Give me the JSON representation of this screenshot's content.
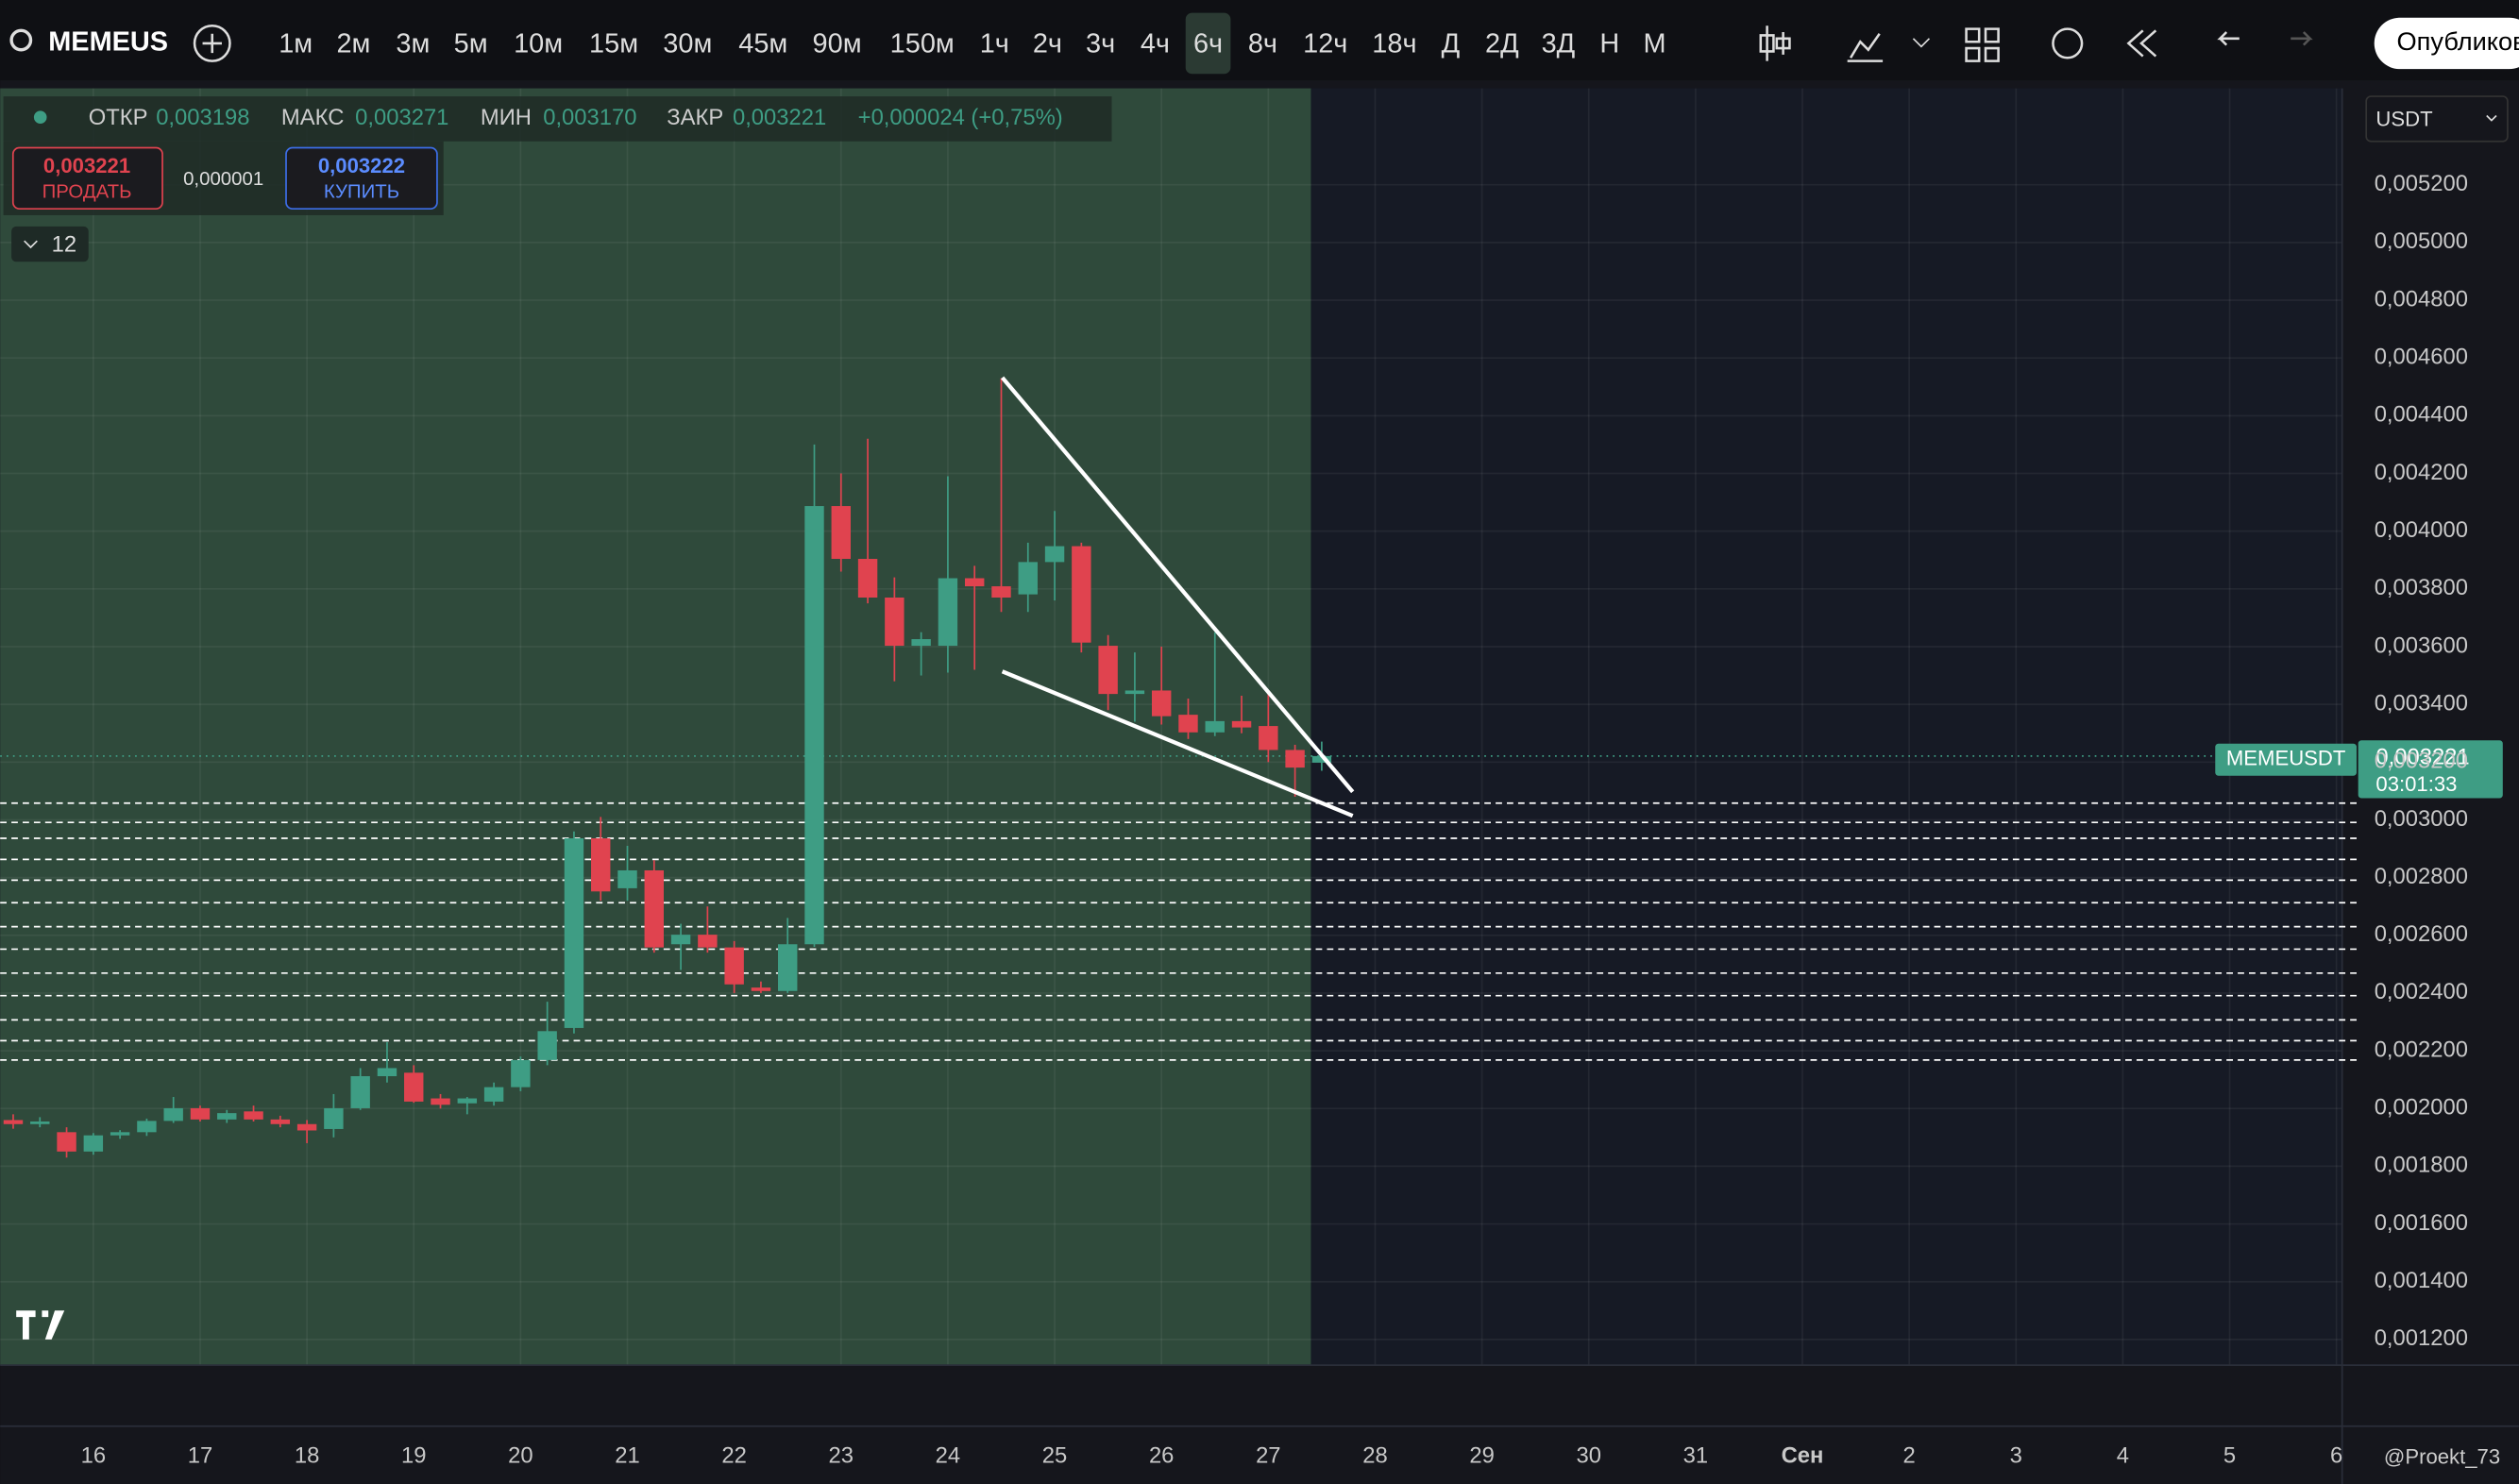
{
  "toolbar": {
    "symbol": "MEMEUS",
    "intervals": [
      "1м",
      "2м",
      "3м",
      "5м",
      "10м",
      "15м",
      "30м",
      "45м",
      "90м",
      "150м",
      "1ч",
      "2ч",
      "3ч",
      "4ч",
      "6ч",
      "8ч",
      "12ч",
      "18ч",
      "Д",
      "2Д",
      "3Д",
      "Н",
      "М"
    ],
    "active_interval": "6ч",
    "publish": "Опубликов"
  },
  "legend": {
    "open_label": "ОТКР",
    "open": "0,003198",
    "high_label": "МАКС",
    "high": "0,003271",
    "low_label": "МИН",
    "low": "0,003170",
    "close_label": "ЗАКР",
    "close": "0,003221",
    "change": "+0,000024 (+0,75%)"
  },
  "trade": {
    "sell_price": "0,003221",
    "sell": "ПРОДАТЬ",
    "spread": "0,000001",
    "buy_price": "0,003222",
    "buy": "КУПИТЬ"
  },
  "indicators_count": "12",
  "currency": "USDT",
  "price_tag": {
    "symbol": "MEMEUSDT",
    "price": "0,003221",
    "countdown": "03:01:33"
  },
  "watermark": "@Proekt_73",
  "chart_data": {
    "type": "candlestick",
    "up_color": "#3e9d84",
    "down_color": "#e0434f",
    "grid": true,
    "x": [
      15.25,
      15.5,
      15.75,
      16,
      16.25,
      16.5,
      16.75,
      17,
      17.25,
      17.5,
      17.75,
      18,
      18.25,
      18.5,
      18.75,
      19,
      19.25,
      19.5,
      19.75,
      20,
      20.25,
      20.5,
      20.75,
      21,
      21.25,
      21.5,
      21.75,
      22,
      22.25,
      22.5,
      22.75,
      23,
      23.25,
      23.5,
      23.75,
      24,
      24.25,
      24.5,
      24.75,
      25,
      25.25,
      25.5,
      25.75,
      26,
      26.25,
      26.5,
      26.75,
      27,
      27.25,
      27.5
    ],
    "open": [
      0.00196,
      0.001946,
      0.001918,
      0.001851,
      0.001907,
      0.001918,
      0.001957,
      0.002001,
      0.001962,
      0.00199,
      0.001962,
      0.001946,
      0.001929,
      0.002001,
      0.002112,
      0.002124,
      0.002035,
      0.002018,
      0.002024,
      0.002074,
      0.002168,
      0.002279,
      0.002936,
      0.002763,
      0.002825,
      0.002569,
      0.002602,
      0.002558,
      0.002419,
      0.002407,
      0.002569,
      0.004087,
      0.003904,
      0.00377,
      0.003603,
      0.003603,
      0.003837,
      0.003809,
      0.003781,
      0.003893,
      0.003948,
      0.003603,
      0.003436,
      0.003448,
      0.003364,
      0.003303,
      0.003342,
      0.003325,
      0.003242,
      0.003198
    ],
    "high": [
      0.00198,
      0.00197,
      0.001935,
      0.001915,
      0.001925,
      0.001965,
      0.00204,
      0.00201,
      0.001995,
      0.00201,
      0.001975,
      0.00196,
      0.00205,
      0.00214,
      0.00223,
      0.00215,
      0.00205,
      0.00204,
      0.00209,
      0.00218,
      0.00237,
      0.00296,
      0.00301,
      0.00291,
      0.00286,
      0.00264,
      0.0027,
      0.00258,
      0.00244,
      0.00266,
      0.0043,
      0.0042,
      0.00432,
      0.00384,
      0.00365,
      0.00419,
      0.00388,
      0.00453,
      0.00396,
      0.00407,
      0.00396,
      0.00364,
      0.00358,
      0.0036,
      0.00342,
      0.00365,
      0.00343,
      0.00344,
      0.00326,
      0.003271
    ],
    "low": [
      0.00193,
      0.001935,
      0.00183,
      0.00184,
      0.001895,
      0.001905,
      0.00195,
      0.001955,
      0.00195,
      0.001955,
      0.001935,
      0.00188,
      0.0019,
      0.001995,
      0.00209,
      0.00202,
      0.002,
      0.00198,
      0.00201,
      0.00206,
      0.00215,
      0.00226,
      0.00272,
      0.00272,
      0.00254,
      0.00248,
      0.00254,
      0.0024,
      0.0024,
      0.0024,
      0.00256,
      0.00386,
      0.00375,
      0.00348,
      0.0035,
      0.00351,
      0.00352,
      0.00372,
      0.00372,
      0.00376,
      0.00358,
      0.00338,
      0.00334,
      0.00333,
      0.00328,
      0.00329,
      0.0033,
      0.0032,
      0.00308,
      0.00317
    ],
    "close": [
      0.001946,
      0.001955,
      0.001851,
      0.001907,
      0.001918,
      0.001957,
      0.002001,
      0.001962,
      0.001984,
      0.001962,
      0.001946,
      0.001924,
      0.002001,
      0.002112,
      0.00214,
      0.002024,
      0.002013,
      0.002035,
      0.002074,
      0.002168,
      0.002268,
      0.002936,
      0.002752,
      0.002825,
      0.002558,
      0.002602,
      0.002558,
      0.00243,
      0.002407,
      0.002569,
      0.004087,
      0.003904,
      0.00377,
      0.003603,
      0.003626,
      0.003837,
      0.003809,
      0.00377,
      0.003893,
      0.003948,
      0.003614,
      0.003436,
      0.003448,
      0.003359,
      0.003303,
      0.003342,
      0.00332,
      0.003242,
      0.003181,
      0.003221
    ],
    "levels": [
      0.003058,
      0.002991,
      0.002936,
      0.002863,
      0.002791,
      0.002713,
      0.00263,
      0.002552,
      0.002469,
      0.002391,
      0.002307,
      0.002235,
      0.002168
    ],
    "trend_lines": [
      {
        "x": [
          24.51,
          27.79
        ],
        "y": [
          0.004532,
          0.003097
        ]
      },
      {
        "x": [
          24.51,
          27.79
        ],
        "y": [
          0.003514,
          0.003014
        ]
      }
    ],
    "xlim": [
      15.128,
      37.053
    ],
    "ylim": [
      0.001111,
      0.005534
    ],
    "xticks": [
      16,
      17,
      18,
      19,
      20,
      21,
      22,
      23,
      24,
      25,
      26,
      27,
      28,
      29,
      30,
      31,
      {
        "value": 32,
        "label": "Сен"
      },
      {
        "value": 33,
        "label": "2"
      },
      {
        "value": 34,
        "label": "3"
      },
      {
        "value": 35,
        "label": "4"
      },
      {
        "value": 36,
        "label": "5"
      },
      {
        "value": 37,
        "label": "6"
      }
    ],
    "yticks": [
      {
        "value": 0.0012,
        "label": "0,001200"
      },
      {
        "value": 0.0014,
        "label": "0,001400"
      },
      {
        "value": 0.0016,
        "label": "0,001600"
      },
      {
        "value": 0.0018,
        "label": "0,001800"
      },
      {
        "value": 0.002,
        "label": "0,002000"
      },
      {
        "value": 0.0022,
        "label": "0,002200"
      },
      {
        "value": 0.0024,
        "label": "0,002400"
      },
      {
        "value": 0.0026,
        "label": "0,002600"
      },
      {
        "value": 0.0028,
        "label": "0,002800"
      },
      {
        "value": 0.003,
        "label": "0,003000"
      },
      {
        "value": 0.0032,
        "label": "0,003200"
      },
      {
        "value": 0.0034,
        "label": "0,003400"
      },
      {
        "value": 0.0036,
        "label": "0,003600"
      },
      {
        "value": 0.0038,
        "label": "0,003800"
      },
      {
        "value": 0.004,
        "label": "0,004000"
      },
      {
        "value": 0.0042,
        "label": "0,004200"
      },
      {
        "value": 0.0044,
        "label": "0,004400"
      },
      {
        "value": 0.0046,
        "label": "0,004600"
      },
      {
        "value": 0.0048,
        "label": "0,004800"
      },
      {
        "value": 0.005,
        "label": "0,005000"
      },
      {
        "value": 0.0052,
        "label": "0,005200"
      }
    ]
  }
}
